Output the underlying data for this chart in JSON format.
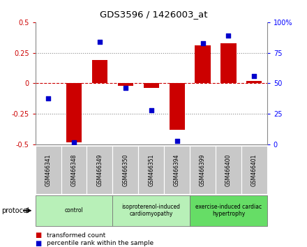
{
  "title": "GDS3596 / 1426003_at",
  "samples": [
    "GSM466341",
    "GSM466348",
    "GSM466349",
    "GSM466350",
    "GSM466351",
    "GSM466394",
    "GSM466399",
    "GSM466400",
    "GSM466401"
  ],
  "bar_values": [
    0.0,
    -0.48,
    0.19,
    -0.02,
    -0.04,
    -0.38,
    0.31,
    0.33,
    0.02
  ],
  "scatter_values": [
    38,
    2,
    84,
    46,
    28,
    3,
    83,
    89,
    56
  ],
  "bar_color": "#cc0000",
  "scatter_color": "#0000cc",
  "left_ylim": [
    -0.5,
    0.5
  ],
  "right_ylim": [
    0,
    100
  ],
  "left_yticks": [
    -0.5,
    -0.25,
    0,
    0.25,
    0.5
  ],
  "right_yticks": [
    0,
    25,
    50,
    75,
    100
  ],
  "left_ytick_labels": [
    "-0.5",
    "-0.25",
    "0",
    "0.25",
    "0.5"
  ],
  "right_ytick_labels": [
    "0",
    "25",
    "50",
    "75",
    "100%"
  ],
  "protocol_label": "protocol",
  "legend_bar_label": "transformed count",
  "legend_scatter_label": "percentile rank within the sample",
  "groups": [
    {
      "label": "control",
      "start": 0,
      "end": 3,
      "color": "#b8f0b8"
    },
    {
      "label": "isoproterenol-induced\ncardiomyopathy",
      "start": 3,
      "end": 6,
      "color": "#b8f0b8"
    },
    {
      "label": "exercise-induced cardiac\nhypertrophy",
      "start": 6,
      "end": 9,
      "color": "#66dd66"
    }
  ],
  "sample_box_color": "#c8c8c8",
  "grid_color": "#888888",
  "zero_line_color": "#cc0000",
  "plot_bg": "#ffffff"
}
